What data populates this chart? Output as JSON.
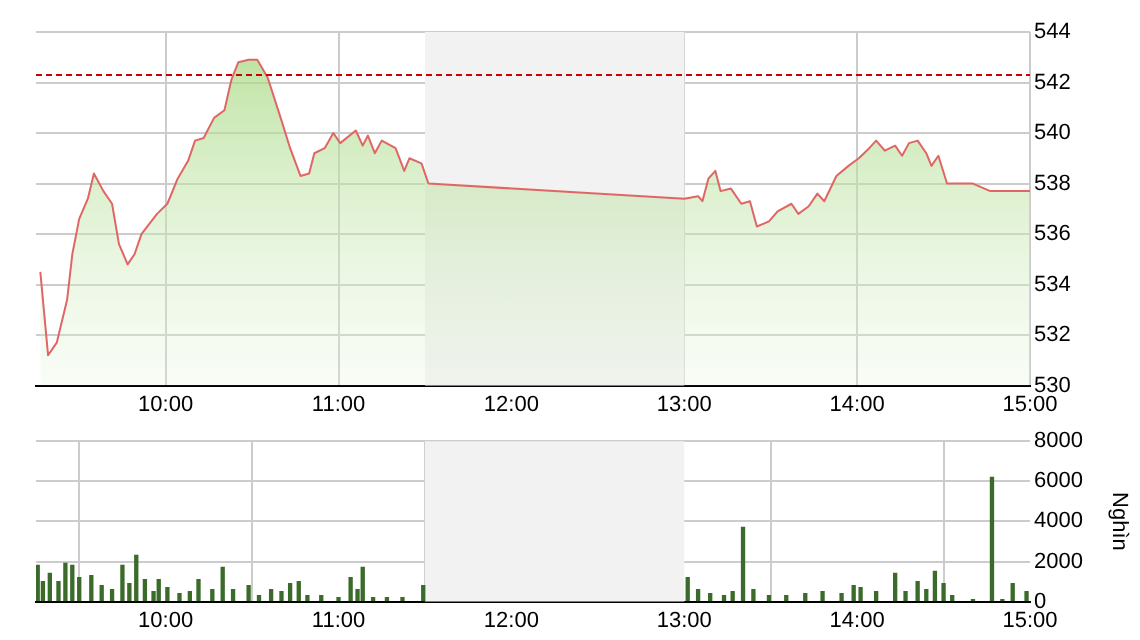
{
  "chart_data": [
    {
      "type": "area",
      "xlim": [
        9.25,
        15
      ],
      "xticks": [
        {
          "value": 10,
          "label": "10:00"
        },
        {
          "value": 11,
          "label": "11:00"
        },
        {
          "value": 12,
          "label": "12:00"
        },
        {
          "value": 13,
          "label": "13:00"
        },
        {
          "value": 14,
          "label": "14:00"
        },
        {
          "value": 15,
          "label": "15:00"
        }
      ],
      "ylim": [
        530,
        544
      ],
      "yticks": [
        530,
        532,
        534,
        536,
        538,
        540,
        542,
        544
      ],
      "grid": true,
      "marker": "none",
      "ref_lines": [
        {
          "axis": "y",
          "value": 542.3,
          "color": "#cc0000",
          "line_style": "dashed"
        }
      ],
      "bands": [
        {
          "axis": "x",
          "from": 11.5,
          "to": 13,
          "color": "#f2f2f2"
        }
      ],
      "series": [
        {
          "color": "#e06666",
          "x": [
            9.275,
            9.32,
            9.37,
            9.43,
            9.46,
            9.5,
            9.55,
            9.585,
            9.64,
            9.69,
            9.73,
            9.78,
            9.82,
            9.86,
            9.95,
            10.01,
            10.07,
            10.13,
            10.17,
            10.22,
            10.28,
            10.34,
            10.38,
            10.42,
            10.48,
            10.53,
            10.59,
            10.67,
            10.72,
            10.78,
            10.83,
            10.86,
            10.92,
            10.97,
            11.01,
            11.1,
            11.14,
            11.17,
            11.21,
            11.25,
            11.33,
            11.38,
            11.41,
            11.48,
            11.52,
            13.0,
            13.08,
            13.105,
            13.14,
            13.18,
            13.21,
            13.27,
            13.33,
            13.38,
            13.42,
            13.49,
            13.54,
            13.62,
            13.66,
            13.72,
            13.77,
            13.81,
            13.88,
            13.95,
            14.01,
            14.07,
            14.11,
            14.16,
            14.22,
            14.26,
            14.3,
            14.35,
            14.4,
            14.43,
            14.47,
            14.52,
            14.67,
            14.77,
            15.0
          ],
          "values": [
            534.5,
            531.2,
            531.7,
            533.4,
            535.2,
            536.6,
            537.4,
            538.4,
            537.7,
            537.2,
            535.6,
            534.8,
            535.2,
            536.0,
            536.8,
            537.2,
            538.2,
            538.9,
            539.7,
            539.8,
            540.6,
            540.9,
            542.1,
            542.8,
            542.9,
            542.9,
            542.2,
            540.5,
            539.4,
            538.3,
            538.4,
            539.2,
            539.4,
            540.0,
            539.6,
            540.1,
            539.5,
            539.9,
            539.2,
            539.7,
            539.4,
            538.5,
            539.0,
            538.8,
            538.0,
            537.4,
            537.5,
            537.3,
            538.2,
            538.5,
            537.7,
            537.8,
            537.2,
            537.3,
            536.3,
            536.5,
            536.9,
            537.2,
            536.8,
            537.1,
            537.6,
            537.3,
            538.3,
            538.7,
            539.0,
            539.4,
            539.7,
            539.3,
            539.5,
            539.1,
            539.6,
            539.7,
            539.2,
            538.7,
            539.1,
            538.0,
            538.0,
            537.7,
            537.7
          ]
        }
      ]
    },
    {
      "type": "bar",
      "xlim": [
        9.25,
        15
      ],
      "xticks": [
        {
          "value": 10,
          "label": "10:00"
        },
        {
          "value": 11,
          "label": "11:00"
        },
        {
          "value": 12,
          "label": "12:00"
        },
        {
          "value": 13,
          "label": "13:00"
        },
        {
          "value": 14,
          "label": "14:00"
        },
        {
          "value": 15,
          "label": "15:00"
        }
      ],
      "ylim": [
        0,
        8000
      ],
      "yticks": [
        0,
        2000,
        4000,
        6000,
        8000
      ],
      "ylabel": "Nghìn",
      "grid": true,
      "bands": [
        {
          "axis": "x",
          "from": 11.5,
          "to": 13,
          "color": "#f2f2f2"
        }
      ],
      "series": [
        {
          "color": "#3a6b2a",
          "x": [
            9.26,
            9.29,
            9.33,
            9.38,
            9.42,
            9.46,
            9.5,
            9.57,
            9.63,
            9.69,
            9.75,
            9.79,
            9.83,
            9.88,
            9.93,
            9.96,
            10.01,
            10.08,
            10.14,
            10.19,
            10.27,
            10.33,
            10.39,
            10.48,
            10.54,
            10.61,
            10.67,
            10.72,
            10.77,
            10.82,
            10.9,
            11.0,
            11.07,
            11.11,
            11.14,
            11.2,
            11.28,
            11.37,
            11.49,
            13.02,
            13.08,
            13.15,
            13.23,
            13.28,
            13.34,
            13.4,
            13.49,
            13.59,
            13.7,
            13.8,
            13.91,
            13.98,
            14.02,
            14.11,
            14.22,
            14.28,
            14.35,
            14.4,
            14.45,
            14.5,
            14.55,
            14.67,
            14.78,
            14.84,
            14.9,
            14.98
          ],
          "values": [
            1800,
            1000,
            1400,
            1000,
            1900,
            1800,
            1200,
            1300,
            800,
            600,
            1800,
            900,
            2300,
            1100,
            500,
            1100,
            700,
            400,
            500,
            1100,
            600,
            1700,
            600,
            800,
            300,
            600,
            500,
            900,
            1000,
            300,
            300,
            200,
            1200,
            600,
            1700,
            200,
            200,
            200,
            800,
            1200,
            600,
            400,
            300,
            500,
            3700,
            600,
            300,
            300,
            400,
            500,
            400,
            800,
            700,
            500,
            1400,
            500,
            1000,
            600,
            1500,
            900,
            300,
            100,
            6200,
            100,
            900,
            500
          ]
        }
      ]
    }
  ]
}
